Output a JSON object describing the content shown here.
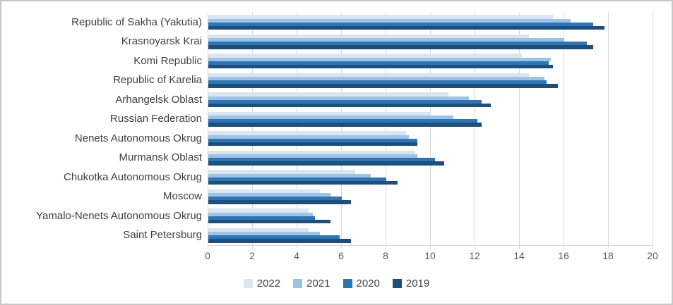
{
  "chart_data": {
    "type": "bar",
    "orientation": "horizontal",
    "title": "",
    "xlabel": "",
    "ylabel": "",
    "xlim": [
      0,
      20
    ],
    "x_ticks": [
      0,
      2,
      4,
      6,
      8,
      10,
      12,
      14,
      16,
      18,
      20
    ],
    "grid": true,
    "legend_position": "bottom",
    "categories": [
      "Republic of Sakha (Yakutia)",
      "Krasnoyarsk Krai",
      "Komi Republic",
      "Republic of Karelia",
      "Arhangelsk Oblast",
      "Russian Federation",
      "Nenets Autonomous Okrug",
      "Murmansk Oblast",
      "Chukotka Autonomous Okrug",
      "Moscow",
      "Yamalo-Nenets Autonomous Okrug",
      "Saint Petersburg"
    ],
    "series": [
      {
        "name": "2022",
        "color": "#d9e6f2",
        "values": [
          15.5,
          14.4,
          14.1,
          14.4,
          10.8,
          10.0,
          8.9,
          9.3,
          6.6,
          5.0,
          4.5,
          4.5
        ]
      },
      {
        "name": "2021",
        "color": "#9dc3e6",
        "values": [
          16.3,
          16.0,
          15.4,
          15.1,
          11.7,
          11.0,
          9.0,
          9.4,
          7.3,
          5.5,
          4.7,
          5.0
        ]
      },
      {
        "name": "2020",
        "color": "#2e75b6",
        "values": [
          17.3,
          17.0,
          15.3,
          15.2,
          12.3,
          12.1,
          9.4,
          10.2,
          8.0,
          6.0,
          4.8,
          5.9
        ]
      },
      {
        "name": "2019",
        "color": "#1f4e79",
        "values": [
          17.8,
          17.3,
          15.5,
          15.7,
          12.7,
          12.3,
          9.4,
          10.6,
          8.5,
          6.4,
          5.5,
          6.4
        ]
      }
    ]
  },
  "colors": {
    "grid": "#d9d9d9",
    "axis_text": "#595959",
    "category_text": "#3f3f3f",
    "frame": "#c6c6c6"
  }
}
